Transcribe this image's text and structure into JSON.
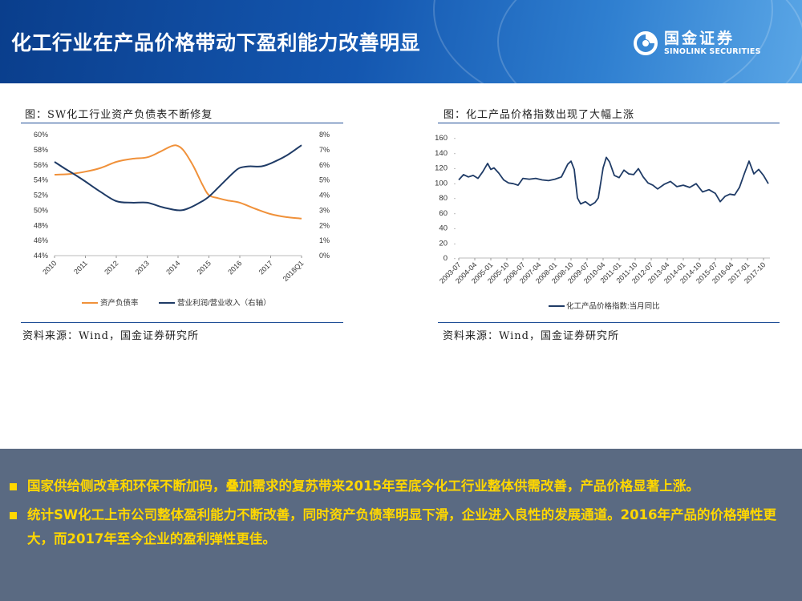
{
  "header": {
    "title": "化工行业在产品价格带动下盈利能力改善明显",
    "logo_cn": "国金证券",
    "logo_en": "SINOLINK SECURITIES"
  },
  "left_panel": {
    "title": "图：SW化工行业资产负债表不断修复",
    "source": "资料来源：Wind，国金证券研究所"
  },
  "right_panel": {
    "title": "图：化工产品价格指数出现了大幅上涨",
    "source": "资料来源：Wind，国金证券研究所"
  },
  "colors": {
    "orange": "#f0913a",
    "navy": "#1f3b66",
    "rule": "#1f4e96",
    "bullet": "#ffd700"
  },
  "chart_data": [
    {
      "type": "line",
      "title": "",
      "x_ticks": [
        "2010",
        "2011",
        "2012",
        "2013",
        "2014",
        "2015",
        "2016",
        "2017",
        "2018Q1"
      ],
      "y_left": {
        "ticks": [
          "60%",
          "58%",
          "56%",
          "54%",
          "52%",
          "50%",
          "48%",
          "46%",
          "44%"
        ],
        "ylim": [
          44,
          60
        ]
      },
      "y_right": {
        "ticks": [
          "8%",
          "7%",
          "6%",
          "5%",
          "4%",
          "3%",
          "2%",
          "1%",
          "0%"
        ],
        "ylim": [
          0,
          8
        ]
      },
      "series": [
        {
          "name": "资产负债率",
          "axis": "left",
          "color": "#f0913a",
          "x": [
            0,
            0.5,
            1,
            1.5,
            2,
            2.5,
            3,
            3.4,
            3.8,
            4.0,
            4.2,
            4.5,
            4.8,
            5.0,
            5.3,
            5.6,
            6.0,
            6.5,
            7.0,
            7.5,
            8.0
          ],
          "values": [
            54.7,
            54.8,
            55.1,
            55.6,
            56.4,
            56.8,
            57.0,
            57.7,
            58.5,
            58.5,
            57.8,
            55.8,
            53.3,
            52.0,
            51.6,
            51.3,
            51.0,
            50.2,
            49.5,
            49.1,
            48.9
          ]
        },
        {
          "name": "营业利润/营业收入（右轴）",
          "axis": "right",
          "color": "#1f3b66",
          "x": [
            0,
            0.3,
            0.7,
            1.0,
            1.5,
            2.0,
            2.5,
            3.0,
            3.5,
            4.0,
            4.3,
            4.7,
            5.0,
            5.4,
            5.8,
            6.0,
            6.3,
            6.7,
            7.0,
            7.5,
            8.0
          ],
          "values": [
            6.2,
            5.8,
            5.3,
            4.9,
            4.2,
            3.6,
            3.5,
            3.5,
            3.2,
            3.0,
            3.1,
            3.5,
            3.9,
            4.7,
            5.5,
            5.8,
            5.9,
            5.9,
            6.1,
            6.6,
            7.3
          ]
        }
      ]
    },
    {
      "type": "line",
      "title": "",
      "x_ticks": [
        "2003-07",
        "2004-04",
        "2005-01",
        "2005-10",
        "2006-07",
        "2007-04",
        "2008-01",
        "2008-10",
        "2009-07",
        "2010-04",
        "2011-01",
        "2011-10",
        "2012-07",
        "2013-04",
        "2014-01",
        "2014-10",
        "2015-07",
        "2016-04",
        "2017-01",
        "2017-10"
      ],
      "y_ticks": [
        "160",
        "140",
        "120",
        "100",
        "80",
        "60",
        "40",
        "20",
        "0"
      ],
      "ylim": [
        0,
        160
      ],
      "series": [
        {
          "name": "化工产品价格指数:当月同比",
          "color": "#1f3b66",
          "x": [
            0,
            0.3,
            0.6,
            0.9,
            1.2,
            1.5,
            1.8,
            2.0,
            2.2,
            2.5,
            2.8,
            3.1,
            3.4,
            3.7,
            4.0,
            4.4,
            4.8,
            5.2,
            5.6,
            6.0,
            6.4,
            6.8,
            7.0,
            7.2,
            7.4,
            7.6,
            7.9,
            8.2,
            8.5,
            8.7,
            9.0,
            9.2,
            9.4,
            9.7,
            10.0,
            10.3,
            10.6,
            10.9,
            11.2,
            11.5,
            11.8,
            12.1,
            12.4,
            12.8,
            13.2,
            13.6,
            14.0,
            14.4,
            14.8,
            15.2,
            15.6,
            16.0,
            16.3,
            16.6,
            16.9,
            17.2,
            17.5,
            17.8,
            18.1,
            18.4,
            18.7,
            19.0,
            19.3
          ],
          "values": [
            104,
            111,
            108,
            110,
            106,
            115,
            126,
            118,
            120,
            113,
            104,
            100,
            99,
            97,
            106,
            105,
            106,
            104,
            103,
            105,
            108,
            125,
            129,
            118,
            80,
            72,
            75,
            70,
            74,
            80,
            120,
            134,
            128,
            110,
            107,
            117,
            112,
            111,
            119,
            108,
            100,
            97,
            92,
            98,
            102,
            95,
            97,
            94,
            99,
            88,
            91,
            86,
            75,
            82,
            85,
            84,
            94,
            112,
            129,
            112,
            118,
            110,
            99
          ]
        }
      ],
      "legend": "化工产品价格指数:当月同比"
    }
  ],
  "bullets": [
    "国家供给侧改革和环保不断加码，叠加需求的复苏带来2015年至底今化工行业整体供需改善，产品价格显著上涨。",
    "统计SW化工上市公司整体盈利能力不断改善，同时资产负债率明显下滑，企业进入良性的发展通道。2016年产品的价格弹性更大，而2017年至今企业的盈利弹性更佳。"
  ]
}
